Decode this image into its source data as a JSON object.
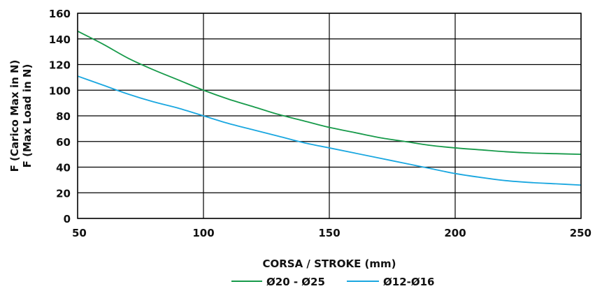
{
  "chart_data": {
    "type": "line",
    "title": "",
    "xlabel": "CORSA / STROKE (mm)",
    "ylabel_lines": [
      "F (Carico Max in N)",
      "F (Max Load in N)"
    ],
    "xlim": [
      50,
      250
    ],
    "ylim": [
      0,
      160
    ],
    "x_ticks": [
      50,
      100,
      150,
      200,
      250
    ],
    "y_ticks": [
      0,
      20,
      40,
      60,
      80,
      100,
      120,
      140,
      160
    ],
    "grid": true,
    "legend_position": "bottom-center",
    "series": [
      {
        "name": "Ø20 - Ø25",
        "color": "#179a4a",
        "x": [
          50,
          60,
          70,
          80,
          90,
          100,
          110,
          120,
          130,
          140,
          150,
          160,
          170,
          180,
          190,
          200,
          210,
          220,
          230,
          240,
          250
        ],
        "y": [
          146,
          136,
          125,
          116,
          108,
          100,
          93,
          87,
          81,
          76,
          71,
          67,
          63,
          60,
          57,
          55,
          53.5,
          52,
          51,
          50.5,
          50
        ]
      },
      {
        "name": "Ø12-Ø16",
        "color": "#1aa7e0",
        "x": [
          50,
          60,
          70,
          80,
          90,
          100,
          110,
          120,
          130,
          140,
          150,
          160,
          170,
          180,
          190,
          200,
          210,
          220,
          230,
          240,
          250
        ],
        "y": [
          111,
          104,
          97,
          91,
          86,
          80,
          74,
          69,
          64,
          59,
          55,
          51,
          47,
          43,
          39,
          35,
          32,
          29.5,
          28,
          27,
          26
        ]
      }
    ]
  }
}
